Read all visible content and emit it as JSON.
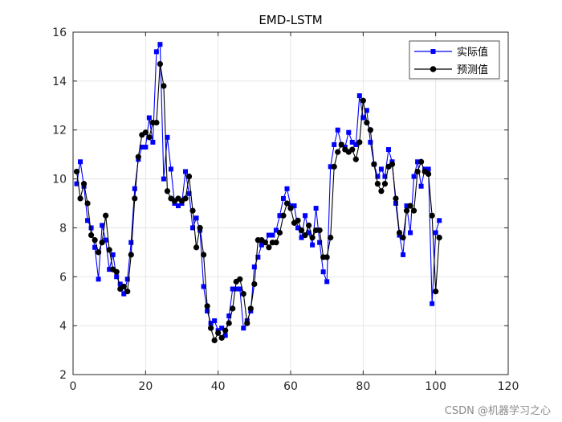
{
  "chart_data": {
    "type": "line",
    "title": "EMD-LSTM",
    "xlabel": "",
    "ylabel": "",
    "xlim": [
      0,
      120
    ],
    "ylim": [
      2,
      16
    ],
    "xticks": [
      0,
      20,
      40,
      60,
      80,
      100,
      120
    ],
    "yticks": [
      2,
      4,
      6,
      8,
      10,
      12,
      14,
      16
    ],
    "grid": true,
    "legend_position": "top-right",
    "series": [
      {
        "name": "实际值",
        "color": "#0000ff",
        "marker": "square",
        "x": [
          1,
          2,
          3,
          4,
          5,
          6,
          7,
          8,
          9,
          10,
          11,
          12,
          13,
          14,
          15,
          16,
          17,
          18,
          19,
          20,
          21,
          22,
          23,
          24,
          25,
          26,
          27,
          28,
          29,
          30,
          31,
          32,
          33,
          34,
          35,
          36,
          37,
          38,
          39,
          40,
          41,
          42,
          43,
          44,
          45,
          46,
          47,
          48,
          49,
          50,
          51,
          52,
          53,
          54,
          55,
          56,
          57,
          58,
          59,
          60,
          61,
          62,
          63,
          64,
          65,
          66,
          67,
          68,
          69,
          70,
          71,
          72,
          73,
          74,
          75,
          76,
          77,
          78,
          79,
          80,
          81,
          82,
          83,
          84,
          85,
          86,
          87,
          88,
          89,
          90,
          91,
          92,
          93,
          94,
          95,
          96,
          97,
          98,
          99,
          100,
          101
        ],
        "values": [
          9.8,
          10.7,
          9.7,
          8.3,
          8.0,
          7.2,
          5.9,
          8.1,
          7.5,
          6.3,
          6.9,
          6.0,
          5.7,
          5.3,
          5.9,
          7.4,
          9.6,
          10.8,
          11.3,
          11.3,
          12.5,
          11.5,
          15.2,
          15.5,
          10.0,
          11.7,
          10.4,
          9.0,
          8.9,
          9.0,
          10.3,
          9.4,
          8.0,
          8.4,
          7.9,
          5.6,
          4.6,
          4.1,
          4.2,
          3.8,
          3.9,
          3.6,
          4.4,
          5.5,
          5.5,
          5.5,
          3.9,
          4.2,
          4.6,
          6.4,
          6.8,
          7.3,
          7.4,
          7.7,
          7.7,
          7.9,
          8.5,
          9.2,
          9.6,
          8.9,
          8.9,
          8.0,
          7.6,
          8.5,
          7.8,
          7.3,
          8.8,
          7.4,
          6.2,
          5.8,
          10.5,
          11.4,
          12.0,
          11.4,
          11.3,
          11.9,
          11.5,
          11.4,
          13.4,
          12.5,
          12.8,
          11.5,
          10.6,
          10.1,
          10.4,
          10.1,
          11.2,
          10.7,
          9.0,
          7.7,
          6.9,
          8.9,
          7.8,
          10.1,
          10.7,
          9.7,
          10.4,
          10.4,
          4.9,
          7.8,
          8.3
        ]
      },
      {
        "name": "预测值",
        "color": "#000000",
        "marker": "circle",
        "x": [
          1,
          2,
          3,
          4,
          5,
          6,
          7,
          8,
          9,
          10,
          11,
          12,
          13,
          14,
          15,
          16,
          17,
          18,
          19,
          20,
          21,
          22,
          23,
          24,
          25,
          26,
          27,
          28,
          29,
          30,
          31,
          32,
          33,
          34,
          35,
          36,
          37,
          38,
          39,
          40,
          41,
          42,
          43,
          44,
          45,
          46,
          47,
          48,
          49,
          50,
          51,
          52,
          53,
          54,
          55,
          56,
          57,
          58,
          59,
          60,
          61,
          62,
          63,
          64,
          65,
          66,
          67,
          68,
          69,
          70,
          71,
          72,
          73,
          74,
          75,
          76,
          77,
          78,
          79,
          80,
          81,
          82,
          83,
          84,
          85,
          86,
          87,
          88,
          89,
          90,
          91,
          92,
          93,
          94,
          95,
          96,
          97,
          98,
          99,
          100,
          101
        ],
        "values": [
          10.3,
          9.2,
          9.8,
          9.0,
          7.7,
          7.5,
          7.0,
          7.4,
          8.5,
          7.1,
          6.3,
          6.2,
          5.5,
          5.6,
          5.4,
          6.9,
          9.2,
          10.9,
          11.8,
          11.9,
          11.7,
          12.3,
          12.3,
          14.7,
          13.8,
          9.5,
          9.2,
          9.1,
          9.2,
          9.1,
          9.2,
          10.1,
          8.7,
          7.2,
          8.0,
          6.9,
          4.8,
          3.9,
          3.4,
          3.7,
          3.5,
          3.8,
          4.1,
          4.7,
          5.8,
          5.9,
          5.3,
          4.1,
          4.7,
          5.7,
          7.5,
          7.5,
          7.4,
          7.2,
          7.4,
          7.4,
          7.8,
          8.5,
          9.0,
          8.8,
          8.2,
          8.3,
          7.9,
          7.7,
          8.1,
          7.6,
          7.9,
          7.9,
          6.8,
          6.8,
          7.6,
          10.5,
          11.1,
          11.4,
          11.2,
          11.1,
          11.2,
          10.8,
          11.5,
          13.2,
          12.3,
          12.0,
          10.6,
          9.8,
          9.5,
          9.8,
          10.5,
          10.6,
          9.2,
          7.8,
          7.6,
          8.7,
          8.9,
          8.7,
          10.3,
          10.7,
          10.3,
          10.2,
          8.5,
          5.4,
          7.6
        ]
      }
    ]
  },
  "watermark": "CSDN @机器学习之心"
}
